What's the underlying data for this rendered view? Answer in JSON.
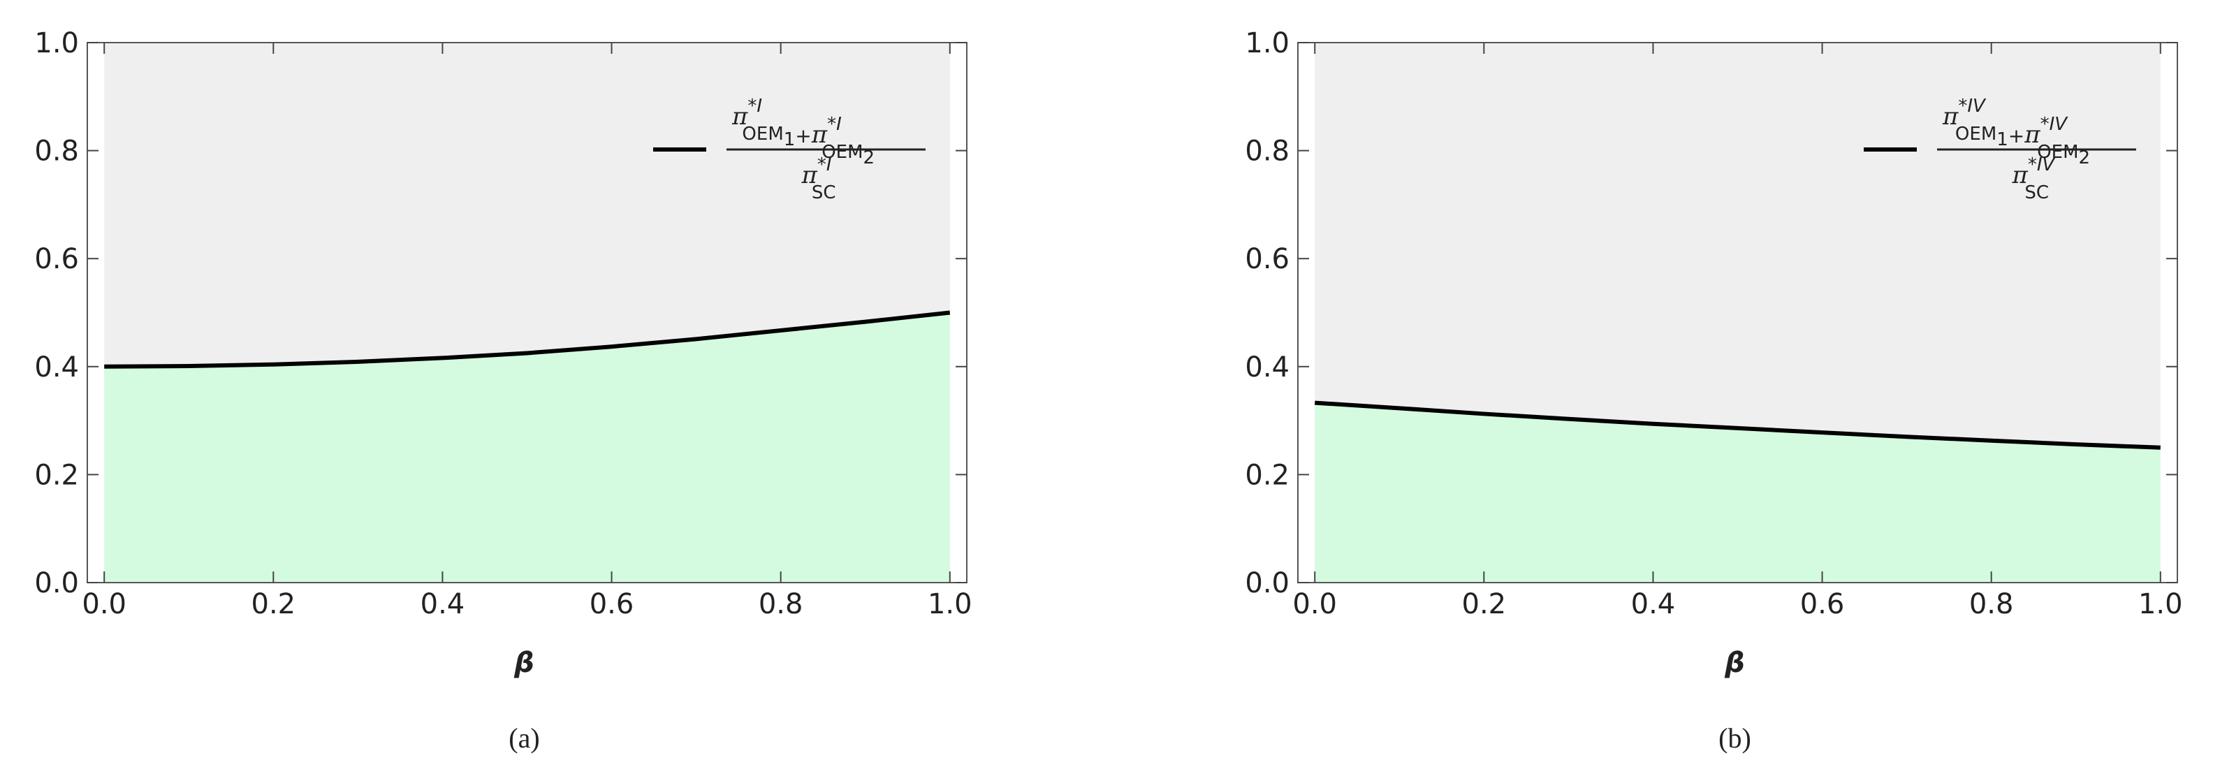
{
  "chart_data": [
    {
      "type": "area",
      "label": "(a)",
      "xlabel": "β",
      "x": [
        0,
        0.1,
        0.2,
        0.3,
        0.4,
        0.5,
        0.6,
        0.7,
        0.8,
        0.9,
        1
      ],
      "series": [
        {
          "name": {
            "numerator": [
              {
                "base": "π",
                "sup": "*I",
                "sub": "OEM",
                "subsub": "1"
              },
              "+",
              {
                "base": "π",
                "sup": "*I",
                "sub": "OEM",
                "subsub": "2"
              }
            ],
            "denominator": {
              "base": "π",
              "sup": "*I",
              "sub": "SC"
            }
          },
          "color": "#000000",
          "fill": "#d4fbdf",
          "values": [
            0.4,
            0.401,
            0.404,
            0.409,
            0.416,
            0.425,
            0.437,
            0.451,
            0.467,
            0.483,
            0.5
          ]
        }
      ],
      "background": "#efefef",
      "xlim": [
        -0.02,
        1.02
      ],
      "ylim": [
        0,
        1
      ],
      "xticks": [
        {
          "value": 0,
          "label": "0.0"
        },
        0.2,
        0.4,
        0.6,
        0.8,
        {
          "value": 1,
          "label": "1.0"
        }
      ],
      "yticks": [
        {
          "value": 0,
          "label": "0.0"
        },
        0.2,
        0.4,
        0.6,
        0.8,
        {
          "value": 1,
          "label": "1.0"
        }
      ]
    },
    {
      "type": "area",
      "label": "(b)",
      "xlabel": "β",
      "x": [
        0,
        0.1,
        0.2,
        0.3,
        0.4,
        0.5,
        0.6,
        0.7,
        0.8,
        0.9,
        1
      ],
      "series": [
        {
          "name": {
            "numerator": [
              {
                "base": "π",
                "sup": "*IV",
                "sub": "OEM",
                "subsub": "1"
              },
              "+",
              {
                "base": "π",
                "sup": "*IV",
                "sub": "OEM",
                "subsub": "2"
              }
            ],
            "denominator": {
              "base": "π",
              "sup": "*IV",
              "sub": "SC"
            }
          },
          "color": "#000000",
          "fill": "#d4fbdf",
          "values": [
            0.333,
            0.323,
            0.3125,
            0.303,
            0.294,
            0.286,
            0.278,
            0.27,
            0.263,
            0.256,
            0.25
          ]
        }
      ],
      "background": "#efefef",
      "xlim": [
        -0.02,
        1.02
      ],
      "ylim": [
        0,
        1
      ],
      "xticks": [
        {
          "value": 0,
          "label": "0.0"
        },
        0.2,
        0.4,
        0.6,
        0.8,
        {
          "value": 1,
          "label": "1.0"
        }
      ],
      "yticks": [
        {
          "value": 0,
          "label": "0.0"
        },
        0.2,
        0.4,
        0.6,
        0.8,
        {
          "value": 1,
          "label": "1.0"
        }
      ]
    }
  ]
}
